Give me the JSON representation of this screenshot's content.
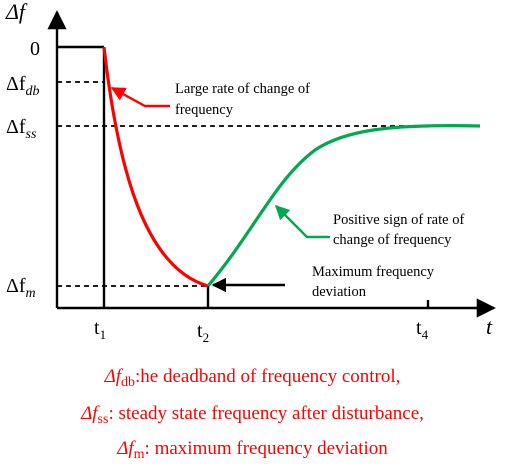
{
  "axes": {
    "y_label": "Δf",
    "x_label": "t"
  },
  "y_ticks": {
    "zero": "0",
    "db": {
      "prefix": "Δf",
      "sub": "db"
    },
    "ss": {
      "prefix": "Δf",
      "sub": "ss"
    },
    "m": {
      "prefix": "Δf",
      "sub": "m"
    }
  },
  "x_ticks": {
    "t1": {
      "base": "t",
      "sub": "1"
    },
    "t2": {
      "base": "t",
      "sub": "2"
    },
    "t4": {
      "base": "t",
      "sub": "4"
    }
  },
  "annotations": {
    "large_rate": [
      "Large rate of change of",
      "frequency"
    ],
    "positive_sign": [
      "Positive sign of rate of",
      "change of frequency"
    ],
    "max_dev": [
      "Maximum frequency",
      "deviation"
    ]
  },
  "legend": {
    "line1": {
      "symbol": "Δf",
      "sub": "db",
      "text": ":he deadband of frequency control,"
    },
    "line2": {
      "symbol": "Δf",
      "sub": "ss",
      "text": ": steady state frequency after disturbance,"
    },
    "line3": {
      "symbol": "Δf",
      "sub": "m",
      "text": ": maximum frequency deviation"
    }
  },
  "colors": {
    "decline": "#ff0000",
    "recovery": "#00a84f",
    "axes": "#000000",
    "legend_text": "#ff0000"
  }
}
